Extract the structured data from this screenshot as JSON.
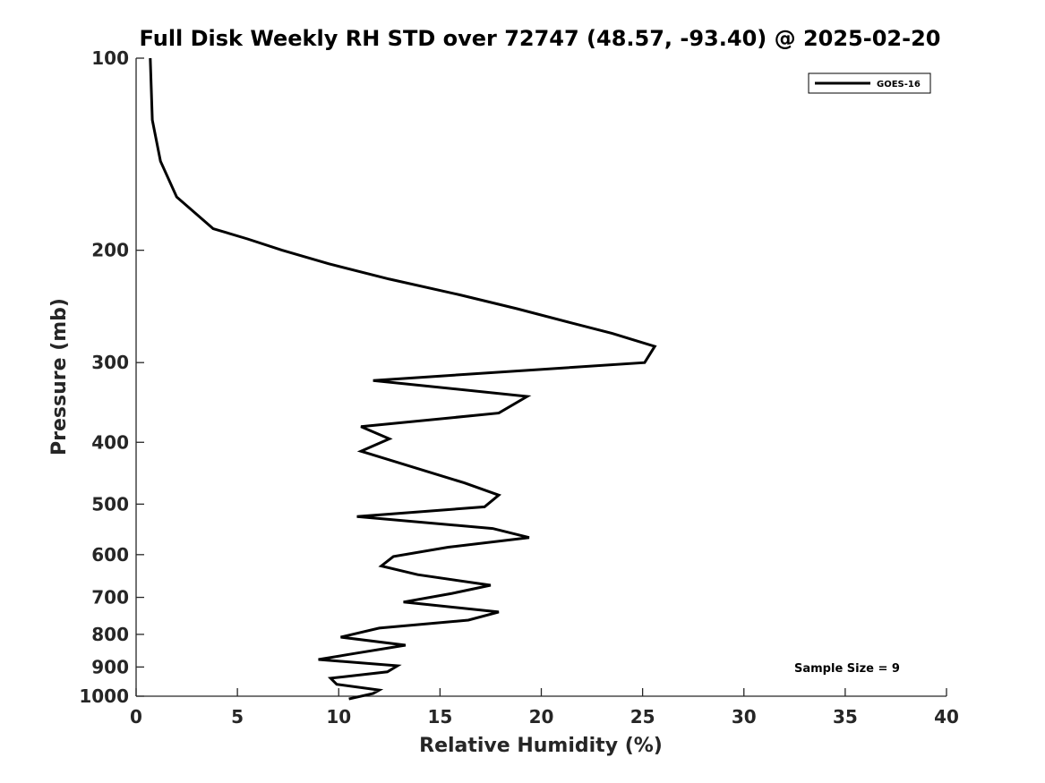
{
  "chart_data": {
    "type": "line",
    "title": "Full Disk Weekly RH STD over 72747 (48.57, -93.40) @ 2025-02-20",
    "xlabel": "Relative Humidity (%)",
    "ylabel": "Pressure (mb)",
    "xlim": [
      0,
      40
    ],
    "ylim": [
      100,
      1000
    ],
    "y_scale": "log",
    "y_reversed": true,
    "x_ticks": [
      0,
      5,
      10,
      15,
      20,
      25,
      30,
      35,
      40
    ],
    "y_ticks": [
      100,
      200,
      300,
      400,
      500,
      600,
      700,
      800,
      900,
      1000
    ],
    "legend_location": "top-right",
    "annotation": "Sample Size = 9",
    "series": [
      {
        "name": "GOES-16",
        "color": "#000000",
        "x": [
          0.7,
          0.8,
          1.2,
          2.0,
          3.8,
          5.5,
          7.2,
          9.5,
          12.5,
          16.0,
          18.8,
          21.5,
          23.5,
          25.6,
          25.1,
          11.7,
          19.3,
          17.9,
          11.1,
          12.5,
          11.1,
          16.2,
          17.9,
          17.2,
          10.9,
          17.6,
          19.4,
          15.4,
          12.7,
          12.1,
          13.9,
          17.5,
          15.6,
          13.2,
          17.9,
          16.4,
          12.0,
          10.1,
          13.3,
          10.8,
          9.0,
          12.9,
          12.4,
          9.6,
          9.9,
          12.0,
          11.7,
          10.5
        ],
        "y": [
          100,
          125,
          145,
          165,
          185,
          192,
          200,
          210,
          222,
          235,
          247,
          260,
          270,
          283,
          300,
          320,
          339,
          360,
          378,
          395,
          413,
          463,
          484,
          505,
          523,
          546,
          564,
          584,
          604,
          625,
          645,
          670,
          690,
          712,
          738,
          760,
          782,
          808,
          832,
          857,
          876,
          896,
          916,
          937,
          958,
          978,
          990,
          1010
        ]
      }
    ]
  }
}
